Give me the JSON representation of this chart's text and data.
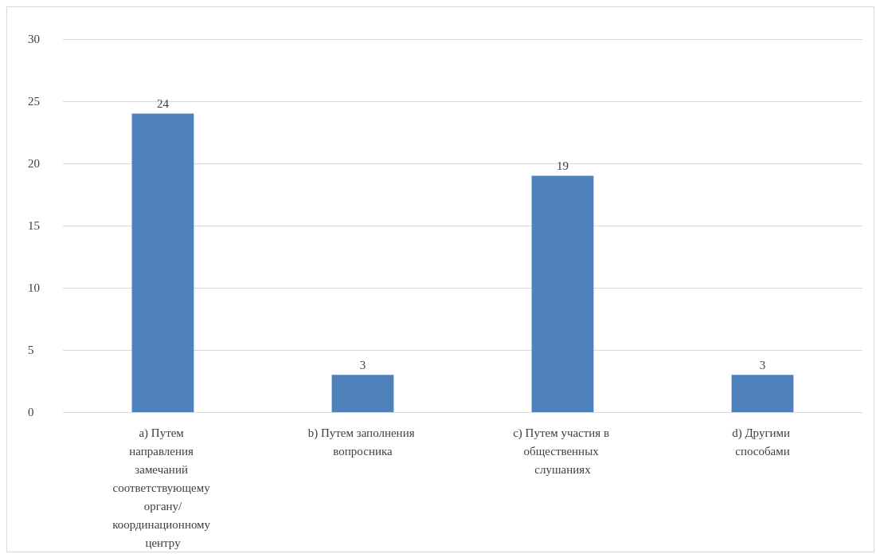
{
  "chart_data": {
    "type": "bar",
    "categories": [
      "a) Путем направления замечаний соответствующему органу/координационному центру",
      "b) Путем заполнения вопросника",
      "c) Путем участия в общественных слушаниях",
      "d) Другими способами"
    ],
    "values": [
      24,
      3,
      19,
      3
    ],
    "color": "#4f81bd",
    "ylim": [
      0,
      30
    ],
    "yticks": [
      0,
      5,
      10,
      15,
      20,
      25,
      30
    ],
    "grid": "y",
    "data_labels": true
  }
}
